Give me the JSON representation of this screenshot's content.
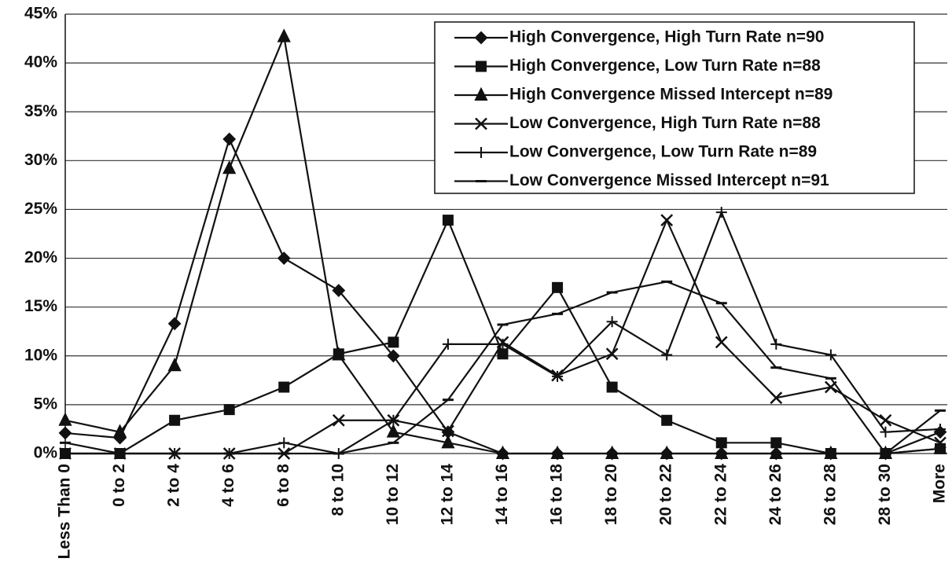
{
  "chart_data": {
    "type": "line",
    "categories": [
      "Less Than 0",
      "0 to 2",
      "2 to 4",
      "4 to 6",
      "6 to 8",
      "8 to 10",
      "10 to 12",
      "12 to 14",
      "14 to 16",
      "16 to 18",
      "18 to 20",
      "20 to 22",
      "22 to 24",
      "24 to 26",
      "26 to 28",
      "28 to 30",
      "More"
    ],
    "ylim": [
      0,
      45
    ],
    "yticks": [
      {
        "value": 0,
        "label": "0%"
      },
      {
        "value": 5,
        "label": "5%"
      },
      {
        "value": 10,
        "label": "10%"
      },
      {
        "value": 15,
        "label": "15%"
      },
      {
        "value": 20,
        "label": "20%"
      },
      {
        "value": 25,
        "label": "25%"
      },
      {
        "value": 30,
        "label": "30%"
      },
      {
        "value": 35,
        "label": "35%"
      },
      {
        "value": 40,
        "label": "40%"
      },
      {
        "value": 45,
        "label": "45%"
      }
    ],
    "grid": true,
    "legend": "top-right",
    "series": [
      {
        "name": "High Convergence, High Turn Rate n=90",
        "color": "#111111",
        "marker": "diamond",
        "values": [
          2.1,
          1.6,
          13.3,
          32.2,
          20.0,
          16.7,
          10.0,
          2.2,
          0,
          0,
          0,
          0,
          0,
          0,
          0,
          0,
          2.2
        ]
      },
      {
        "name": "High Convergence, Low Turn Rate n=88",
        "color": "#111111",
        "marker": "square",
        "values": [
          0,
          0,
          3.4,
          4.5,
          6.8,
          10.2,
          11.4,
          23.9,
          10.2,
          17.0,
          6.8,
          3.4,
          1.1,
          1.1,
          0,
          0,
          0.5
        ]
      },
      {
        "name": "High Convergence Missed Intercept n=89",
        "color": "#111111",
        "marker": "triangle",
        "values": [
          3.4,
          2.2,
          9.0,
          29.2,
          42.7,
          10.1,
          2.2,
          1.1,
          0,
          0,
          0,
          0,
          0,
          0,
          0,
          0,
          0.5
        ]
      },
      {
        "name": "Low Convergence, High Turn Rate n=88",
        "color": "#111111",
        "marker": "x",
        "values": [
          0,
          0,
          0,
          0,
          0,
          3.4,
          3.4,
          2.3,
          11.4,
          8.0,
          10.2,
          23.9,
          11.4,
          5.7,
          6.8,
          3.4,
          1.1
        ]
      },
      {
        "name": "Low Convergence, Low Turn Rate n=89",
        "color": "#111111",
        "marker": "plus",
        "values": [
          0,
          0,
          0,
          0,
          1.1,
          0,
          3.4,
          11.2,
          11.2,
          7.9,
          13.5,
          10.1,
          24.7,
          11.2,
          10.1,
          2.2,
          2.5
        ]
      },
      {
        "name": "Low Convergence Missed Intercept n=91",
        "color": "#111111",
        "marker": "dash",
        "values": [
          1.1,
          0,
          0,
          0,
          0,
          0,
          1.1,
          5.5,
          13.2,
          14.3,
          16.5,
          17.6,
          15.4,
          8.8,
          7.7,
          0,
          4.4
        ]
      }
    ]
  }
}
